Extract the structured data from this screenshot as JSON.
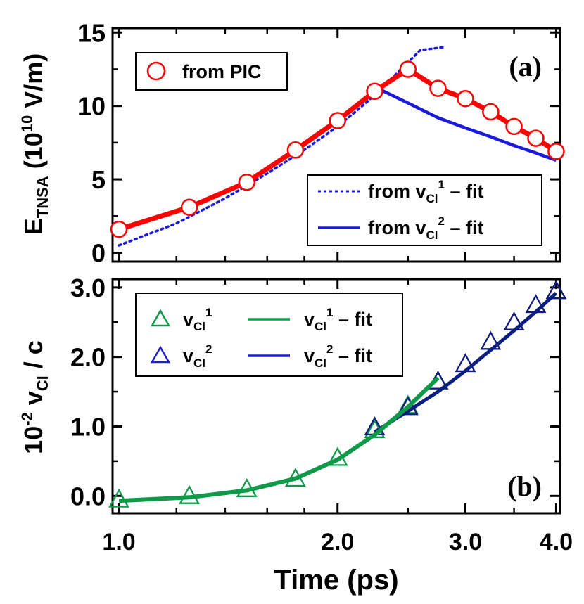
{
  "chart_data": [
    {
      "type": "line",
      "panel_label": "(a)",
      "xscale": "log",
      "xlim": [
        0.98,
        4.05
      ],
      "ylim": [
        -0.6,
        15.3
      ],
      "yticks": [
        0,
        5,
        10,
        15
      ],
      "ytick_labels": [
        "0",
        "5",
        "10",
        "15"
      ],
      "ylabel": {
        "main": "E",
        "sub": "TNSA",
        "unit_pre": " (10",
        "unit_sup": "10",
        "unit_post": " V/m)"
      },
      "colors": {
        "pic": "#ff0000",
        "fit1": "#1a1adc",
        "fit2": "#1a1adc"
      },
      "series": [
        {
          "name": "from PIC",
          "style": "line-marker",
          "marker": "circle",
          "x": [
            1.0,
            1.25,
            1.5,
            1.75,
            2.0,
            2.25,
            2.5,
            2.75,
            3.0,
            3.25,
            3.5,
            3.75,
            4.0
          ],
          "y": [
            1.6,
            3.1,
            4.8,
            7.0,
            9.0,
            11.0,
            12.5,
            11.2,
            10.5,
            9.6,
            8.6,
            7.8,
            6.9
          ]
        },
        {
          "name": "from v_Cl^1 - fit",
          "style": "dotted",
          "x": [
            1.0,
            1.2,
            1.4,
            1.6,
            1.8,
            2.0,
            2.2,
            2.4,
            2.6,
            2.8
          ],
          "y": [
            0.5,
            2.0,
            3.7,
            5.4,
            7.0,
            8.6,
            10.3,
            12.1,
            13.8,
            14.0
          ]
        },
        {
          "name": "from v_Cl^2 - fit",
          "style": "solid",
          "x": [
            2.25,
            2.5,
            2.75,
            3.0,
            3.25,
            3.5,
            3.75,
            4.0
          ],
          "y": [
            11.3,
            10.2,
            9.2,
            8.5,
            7.9,
            7.3,
            6.8,
            6.3
          ]
        }
      ],
      "legend": {
        "top": {
          "label": "from PIC"
        },
        "bottom": [
          {
            "pre": "from v",
            "sub": "Cl",
            "sup": "1",
            "post": " – fit"
          },
          {
            "pre": "from v",
            "sub": "Cl",
            "sup": "2",
            "post": " – fit"
          }
        ]
      }
    },
    {
      "type": "scatter",
      "panel_label": "(b)",
      "xscale": "log",
      "xlim": [
        0.98,
        4.05
      ],
      "ylim": [
        -0.25,
        3.12
      ],
      "yticks": [
        0.0,
        1.0,
        2.0,
        3.0
      ],
      "ytick_labels": [
        "0.0",
        "1.0",
        "2.0",
        "3.0"
      ],
      "xticks": [
        1.0,
        2.0,
        3.0,
        4.0
      ],
      "xtick_labels": [
        "1.0",
        "2.0",
        "3.0",
        "4.0"
      ],
      "xlabel": "Time (ps)",
      "ylabel": {
        "pre": "10",
        "sup": "-2",
        "mid": " v",
        "sub": "Cl",
        "post": " / c"
      },
      "colors": {
        "v1": "#0f9a4a",
        "v2": "#2020c8",
        "fit1": "#0f9a4a",
        "fit2": "#0a1f80",
        "v2_marker": "#101a80"
      },
      "series": [
        {
          "name": "v_Cl^1",
          "style": "marker",
          "marker": "triangle",
          "x": [
            1.0,
            1.25,
            1.5,
            1.75,
            2.0,
            2.25,
            2.5,
            2.75
          ],
          "y": [
            -0.05,
            0.0,
            0.1,
            0.25,
            0.55,
            0.95,
            1.3,
            1.65
          ]
        },
        {
          "name": "v_Cl^2",
          "style": "marker",
          "marker": "triangle",
          "x": [
            2.25,
            2.5,
            2.75,
            3.0,
            3.25,
            3.5,
            3.75,
            4.0
          ],
          "y": [
            0.99,
            1.28,
            1.65,
            1.9,
            2.22,
            2.5,
            2.75,
            2.95
          ]
        },
        {
          "name": "v_Cl^1 - fit",
          "style": "solid",
          "x": [
            1.0,
            1.25,
            1.5,
            1.75,
            2.0,
            2.25,
            2.5,
            2.75
          ],
          "y": [
            -0.07,
            -0.02,
            0.08,
            0.25,
            0.52,
            0.88,
            1.28,
            1.7
          ]
        },
        {
          "name": "v_Cl^2 - fit",
          "style": "solid",
          "x": [
            2.25,
            2.5,
            2.75,
            3.0,
            3.25,
            3.5,
            3.75,
            4.0
          ],
          "y": [
            0.92,
            1.22,
            1.5,
            1.8,
            2.1,
            2.38,
            2.65,
            2.92
          ]
        }
      ],
      "legend": [
        {
          "pre": "v",
          "sub": "Cl",
          "sup": "1",
          "post": ""
        },
        {
          "pre": "v",
          "sub": "Cl",
          "sup": "2",
          "post": ""
        },
        {
          "pre": "v",
          "sub": "Cl",
          "sup": "1",
          "post": " – fit"
        },
        {
          "pre": "v",
          "sub": "Cl",
          "sup": "2",
          "post": " – fit"
        }
      ]
    }
  ]
}
